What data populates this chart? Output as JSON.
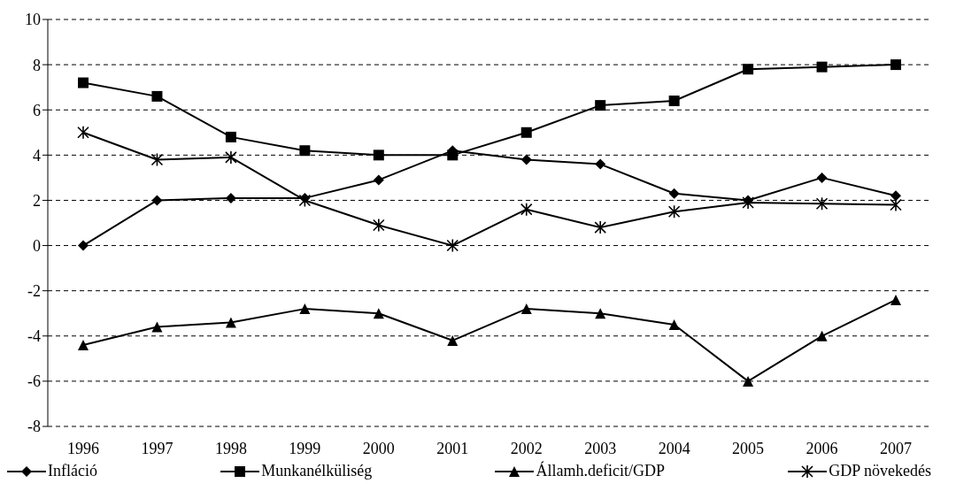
{
  "chart_data": {
    "type": "line",
    "categories": [
      "1996",
      "1997",
      "1998",
      "1999",
      "2000",
      "2001",
      "2002",
      "2003",
      "2004",
      "2005",
      "2006",
      "2007"
    ],
    "series": [
      {
        "name": "Infláció",
        "color": "#000000",
        "marker": "diamond",
        "values": [
          0,
          2.0,
          2.1,
          2.1,
          2.9,
          4.2,
          3.8,
          3.6,
          2.3,
          2.0,
          3.0,
          2.2
        ]
      },
      {
        "name": "Munkanélküliség",
        "color": "#000000",
        "marker": "square",
        "values": [
          7.2,
          6.6,
          4.8,
          4.2,
          4.0,
          4.0,
          5.0,
          6.2,
          6.4,
          7.8,
          7.9,
          8.0
        ]
      },
      {
        "name": "Államh.deficit/GDP",
        "color": "#000000",
        "marker": "triangle",
        "values": [
          -4.4,
          -3.6,
          -3.4,
          -2.8,
          -3.0,
          -4.2,
          -2.8,
          -3.0,
          -3.5,
          -6.0,
          -4.0,
          -2.4
        ]
      },
      {
        "name": "GDP növekedés",
        "color": "#000000",
        "marker": "cross",
        "values": [
          5.0,
          3.8,
          3.9,
          2.0,
          0.9,
          0,
          1.6,
          0.8,
          1.5,
          1.9,
          1.85,
          1.8
        ]
      }
    ],
    "ylim": [
      -8,
      10
    ],
    "yticks": [
      -8,
      -6,
      -4,
      -2,
      0,
      2,
      4,
      6,
      8,
      10
    ],
    "grid": "y",
    "legend": "bottom",
    "line_style": "solid"
  }
}
